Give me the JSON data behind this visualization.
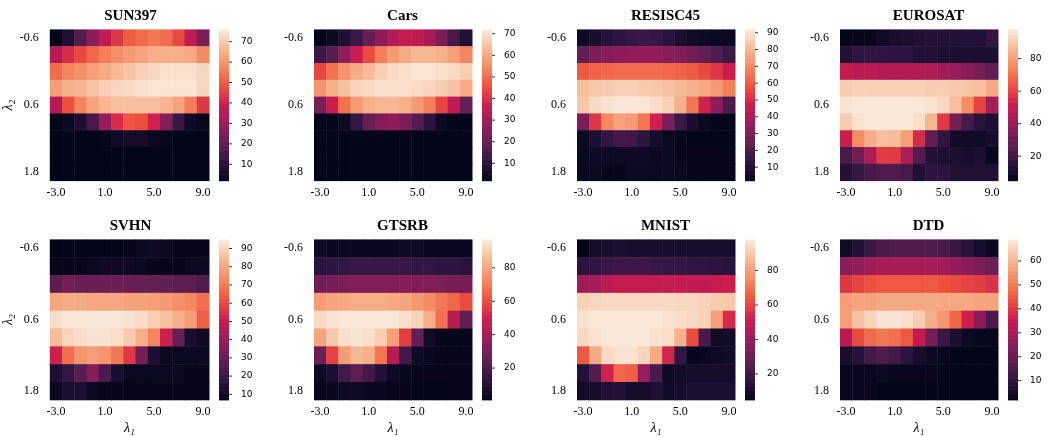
{
  "chart_data": [
    {
      "type": "heatmap",
      "title": "SUN397",
      "ylabel": "λ₂",
      "categories": [
        "-3.0",
        null,
        null,
        null,
        "1.0",
        null,
        null,
        null,
        "5.0",
        null,
        null,
        null,
        "9.0"
      ],
      "y_categories": [
        "-0.6",
        null,
        null,
        null,
        "0.6",
        null,
        null,
        null,
        "1.8"
      ],
      "clim": [
        2,
        76
      ],
      "cticks": [
        10,
        20,
        30,
        40,
        50,
        60,
        70
      ],
      "cells": [
        [
          2,
          8,
          18,
          28,
          37,
          44,
          50,
          53,
          55,
          53,
          47,
          37,
          25
        ],
        [
          35,
          42,
          47,
          52,
          56,
          59,
          61,
          63,
          65,
          65,
          65,
          64,
          58
        ],
        [
          53,
          57,
          59,
          62,
          64,
          67,
          69,
          71,
          72,
          74,
          74,
          74,
          72
        ],
        [
          62,
          65,
          66,
          69,
          71,
          72,
          73,
          74,
          75,
          75,
          75,
          75,
          72
        ],
        [
          35,
          48,
          57,
          63,
          66,
          68,
          68,
          68,
          68,
          66,
          63,
          56,
          44
        ],
        [
          2,
          4,
          8,
          16,
          30,
          42,
          49,
          48,
          40,
          27,
          13,
          5,
          3
        ],
        [
          2,
          2,
          2,
          2,
          3,
          5,
          6,
          6,
          4,
          3,
          2,
          2,
          2
        ],
        [
          2,
          2,
          2,
          2,
          2,
          2,
          2,
          2,
          2,
          2,
          2,
          2,
          2
        ],
        [
          2,
          2,
          2,
          2,
          2,
          2,
          2,
          2,
          2,
          2,
          2,
          2,
          2
        ]
      ]
    },
    {
      "type": "heatmap",
      "title": "Cars",
      "categories": [
        "-3.0",
        null,
        null,
        null,
        "1.0",
        null,
        null,
        null,
        "5.0",
        null,
        null,
        null,
        "9.0"
      ],
      "y_categories": [
        "-0.6",
        null,
        null,
        null,
        "0.6",
        null,
        null,
        null,
        "1.8"
      ],
      "clim": [
        2,
        72
      ],
      "cticks": [
        10,
        20,
        30,
        40,
        50,
        60,
        70
      ],
      "cells": [
        [
          2,
          4,
          8,
          13,
          20,
          27,
          33,
          36,
          35,
          31,
          24,
          15,
          8
        ],
        [
          13,
          18,
          27,
          37,
          45,
          53,
          58,
          61,
          63,
          63,
          62,
          59,
          54
        ],
        [
          44,
          51,
          57,
          61,
          64,
          67,
          69,
          70,
          71,
          71,
          70,
          69,
          67
        ],
        [
          57,
          62,
          65,
          68,
          69,
          70,
          70,
          70,
          69,
          68,
          67,
          65,
          61
        ],
        [
          23,
          37,
          51,
          58,
          62,
          63,
          63,
          62,
          58,
          53,
          44,
          35,
          20
        ],
        [
          2,
          2,
          4,
          12,
          20,
          25,
          27,
          24,
          17,
          10,
          4,
          2,
          2
        ],
        [
          2,
          2,
          2,
          2,
          2,
          2,
          2,
          2,
          2,
          2,
          2,
          2,
          2
        ],
        [
          2,
          2,
          2,
          2,
          2,
          2,
          2,
          2,
          2,
          2,
          2,
          2,
          2
        ],
        [
          2,
          2,
          2,
          2,
          2,
          2,
          2,
          2,
          2,
          2,
          2,
          2,
          2
        ]
      ]
    },
    {
      "type": "heatmap",
      "title": "RESISC45",
      "categories": [
        "-3.0",
        null,
        null,
        null,
        "1.0",
        null,
        null,
        null,
        "5.0",
        null,
        null,
        null,
        "9.0"
      ],
      "y_categories": [
        "-0.6",
        null,
        null,
        null,
        "0.6",
        null,
        null,
        null,
        "1.8"
      ],
      "clim": [
        2,
        92
      ],
      "cticks": [
        10,
        20,
        30,
        40,
        50,
        60,
        70,
        80,
        90
      ],
      "cells": [
        [
          5,
          8,
          11,
          13,
          15,
          16,
          15,
          12,
          9,
          6,
          5,
          4,
          4
        ],
        [
          25,
          30,
          32,
          34,
          35,
          35,
          35,
          33,
          31,
          28,
          25,
          21,
          16
        ],
        [
          60,
          62,
          63,
          64,
          64,
          64,
          64,
          63,
          62,
          60,
          57,
          53,
          47
        ],
        [
          82,
          84,
          85,
          86,
          86,
          85,
          84,
          83,
          81,
          79,
          77,
          74,
          68
        ],
        [
          84,
          88,
          90,
          91,
          91,
          91,
          89,
          86,
          79,
          66,
          48,
          33,
          20
        ],
        [
          30,
          53,
          70,
          76,
          74,
          66,
          48,
          30,
          16,
          8,
          4,
          3,
          3
        ],
        [
          5,
          9,
          14,
          18,
          17,
          13,
          7,
          4,
          3,
          2,
          2,
          2,
          2
        ],
        [
          4,
          5,
          5,
          5,
          5,
          5,
          4,
          4,
          3,
          3,
          3,
          3,
          3
        ],
        [
          4,
          4,
          3,
          3,
          4,
          4,
          4,
          4,
          4,
          3,
          3,
          3,
          3
        ]
      ]
    },
    {
      "type": "heatmap",
      "title": "EUROSAT",
      "categories": [
        "-3.0",
        null,
        null,
        null,
        "1.0",
        null,
        null,
        null,
        "5.0",
        null,
        null,
        null,
        "9.0"
      ],
      "y_categories": [
        "-0.6",
        null,
        null,
        null,
        "0.6",
        null,
        null,
        null,
        "1.8"
      ],
      "clim": [
        5,
        98
      ],
      "cticks": [
        20,
        40,
        60,
        80
      ],
      "cells": [
        [
          5,
          6,
          6,
          9,
          11,
          12,
          13,
          14,
          14,
          14,
          14,
          14,
          18
        ],
        [
          13,
          17,
          17,
          17,
          16,
          16,
          14,
          13,
          12,
          12,
          12,
          12,
          12
        ],
        [
          50,
          48,
          48,
          46,
          46,
          46,
          46,
          45,
          42,
          40,
          37,
          33,
          28
        ],
        [
          91,
          92,
          92,
          92,
          92,
          92,
          92,
          91,
          91,
          90,
          89,
          88,
          83
        ],
        [
          96,
          97,
          97,
          97,
          97,
          97,
          97,
          96,
          94,
          88,
          76,
          60,
          43
        ],
        [
          91,
          96,
          97,
          97,
          97,
          97,
          95,
          86,
          58,
          33,
          22,
          15,
          12
        ],
        [
          52,
          76,
          84,
          88,
          87,
          80,
          55,
          28,
          17,
          9,
          9,
          9,
          11
        ],
        [
          22,
          32,
          45,
          59,
          58,
          45,
          25,
          14,
          12,
          12,
          11,
          12,
          6
        ],
        [
          14,
          18,
          22,
          24,
          24,
          22,
          13,
          16,
          16,
          13,
          13,
          13,
          13
        ]
      ]
    },
    {
      "type": "heatmap",
      "title": "SVHN",
      "xlabel": "λ₁",
      "ylabel": "λ₂",
      "categories": [
        "-3.0",
        null,
        null,
        null,
        "1.0",
        null,
        null,
        null,
        "5.0",
        null,
        null,
        null,
        "9.0"
      ],
      "y_categories": [
        "-0.6",
        null,
        null,
        null,
        "0.6",
        null,
        null,
        null,
        "1.8"
      ],
      "clim": [
        7,
        95
      ],
      "cticks": [
        10,
        20,
        30,
        40,
        50,
        60,
        70,
        80,
        90
      ],
      "cells": [
        [
          7,
          7,
          7,
          7,
          7,
          7,
          8,
          9,
          10,
          9,
          8,
          8,
          8
        ],
        [
          8,
          8,
          8,
          9,
          10,
          10,
          10,
          9,
          8,
          8,
          8,
          9,
          9
        ],
        [
          28,
          33,
          31,
          31,
          31,
          31,
          31,
          30,
          30,
          29,
          28,
          28,
          25
        ],
        [
          80,
          81,
          81,
          80,
          80,
          80,
          79,
          79,
          78,
          77,
          75,
          73,
          68
        ],
        [
          92,
          94,
          94,
          94,
          94,
          94,
          93,
          92,
          89,
          86,
          82,
          78,
          65
        ],
        [
          85,
          90,
          92,
          93,
          93,
          92,
          88,
          82,
          73,
          52,
          30,
          13,
          10
        ],
        [
          52,
          68,
          76,
          78,
          76,
          70,
          57,
          33,
          14,
          9,
          9,
          9,
          9
        ],
        [
          14,
          19,
          27,
          36,
          24,
          13,
          9,
          9,
          9,
          9,
          9,
          8,
          8
        ],
        [
          9,
          14,
          14,
          9,
          8,
          8,
          8,
          8,
          8,
          8,
          8,
          8,
          8
        ]
      ]
    },
    {
      "type": "heatmap",
      "title": "GTSRB",
      "xlabel": "λ₁",
      "categories": [
        "-3.0",
        null,
        null,
        null,
        "1.0",
        null,
        null,
        null,
        "5.0",
        null,
        null,
        null,
        "9.0"
      ],
      "y_categories": [
        "-0.6",
        null,
        null,
        null,
        "0.6",
        null,
        null,
        null,
        "1.8"
      ],
      "clim": [
        1,
        97
      ],
      "cticks": [
        20,
        40,
        60,
        80
      ],
      "cells": [
        [
          4,
          3,
          3,
          3,
          3,
          3,
          3,
          4,
          4,
          3,
          3,
          3,
          3
        ],
        [
          12,
          13,
          14,
          15,
          15,
          15,
          15,
          15,
          14,
          14,
          13,
          13,
          12
        ],
        [
          28,
          30,
          31,
          32,
          32,
          32,
          32,
          33,
          32,
          32,
          31,
          30,
          30
        ],
        [
          78,
          80,
          81,
          82,
          82,
          82,
          81,
          80,
          77,
          74,
          70,
          66,
          60
        ],
        [
          93,
          95,
          96,
          96,
          96,
          96,
          96,
          94,
          91,
          82,
          68,
          45,
          25
        ],
        [
          80,
          89,
          94,
          95,
          94,
          90,
          79,
          57,
          25,
          5,
          2,
          2,
          2
        ],
        [
          27,
          58,
          78,
          85,
          83,
          69,
          44,
          18,
          5,
          3,
          2,
          2,
          2
        ],
        [
          4,
          8,
          18,
          24,
          18,
          10,
          4,
          3,
          2,
          2,
          2,
          2,
          2
        ],
        [
          2,
          3,
          4,
          4,
          3,
          3,
          2,
          2,
          1,
          1,
          1,
          2,
          2
        ]
      ]
    },
    {
      "type": "heatmap",
      "title": "MNIST",
      "xlabel": "λ₁",
      "categories": [
        "-3.0",
        null,
        null,
        null,
        "1.0",
        null,
        null,
        null,
        "5.0",
        null,
        null,
        null,
        "9.0"
      ],
      "y_categories": [
        "-0.6",
        null,
        null,
        null,
        "0.6",
        null,
        null,
        null,
        "1.8"
      ],
      "clim": [
        5,
        98
      ],
      "cticks": [
        20,
        40,
        60,
        80
      ],
      "cells": [
        [
          5,
          10,
          11,
          12,
          11,
          11,
          11,
          11,
          11,
          11,
          11,
          11,
          11
        ],
        [
          16,
          17,
          19,
          20,
          20,
          20,
          19,
          18,
          18,
          17,
          17,
          16,
          15
        ],
        [
          42,
          43,
          48,
          50,
          50,
          50,
          50,
          50,
          50,
          49,
          49,
          51,
          52
        ],
        [
          92,
          93,
          94,
          94,
          94,
          94,
          94,
          94,
          93,
          93,
          92,
          91,
          90
        ],
        [
          96,
          97,
          97,
          97,
          97,
          97,
          97,
          96,
          95,
          94,
          92,
          80,
          55
        ],
        [
          94,
          96,
          97,
          97,
          97,
          97,
          96,
          95,
          85,
          62,
          22,
          9,
          9
        ],
        [
          65,
          83,
          94,
          96,
          96,
          93,
          83,
          54,
          18,
          6,
          7,
          8,
          9
        ],
        [
          14,
          25,
          53,
          68,
          66,
          40,
          23,
          8,
          9,
          10,
          10,
          10,
          10
        ],
        [
          9,
          10,
          13,
          14,
          10,
          10,
          13,
          9,
          11,
          12,
          12,
          12,
          12
        ]
      ]
    },
    {
      "type": "heatmap",
      "title": "DTD",
      "xlabel": "λ₁",
      "categories": [
        "-3.0",
        null,
        null,
        null,
        "1.0",
        null,
        null,
        null,
        "5.0",
        null,
        null,
        null,
        "9.0"
      ],
      "y_categories": [
        "-0.6",
        null,
        null,
        null,
        "0.6",
        null,
        null,
        null,
        "1.8"
      ],
      "clim": [
        2,
        69
      ],
      "cticks": [
        10,
        20,
        30,
        40,
        50,
        60
      ],
      "cells": [
        [
          5,
          8,
          12,
          15,
          16,
          16,
          16,
          16,
          15,
          12,
          9,
          6,
          4
        ],
        [
          25,
          27,
          29,
          30,
          30,
          30,
          30,
          30,
          29,
          27,
          25,
          23,
          20
        ],
        [
          40,
          42,
          44,
          45,
          45,
          45,
          45,
          45,
          44,
          43,
          42,
          41,
          39
        ],
        [
          56,
          57,
          57,
          58,
          58,
          58,
          58,
          58,
          58,
          58,
          58,
          57,
          57
        ],
        [
          56,
          62,
          65,
          68,
          68,
          67,
          64,
          59,
          55,
          47,
          36,
          26,
          15
        ],
        [
          33,
          43,
          48,
          50,
          49,
          45,
          34,
          22,
          12,
          7,
          4,
          3,
          3
        ],
        [
          6,
          9,
          14,
          16,
          14,
          10,
          6,
          4,
          3,
          2,
          2,
          2,
          2
        ],
        [
          3,
          3,
          3,
          4,
          3,
          3,
          3,
          3,
          2,
          2,
          2,
          2,
          2
        ],
        [
          3,
          3,
          3,
          2,
          2,
          2,
          2,
          2,
          2,
          2,
          2,
          2,
          2
        ]
      ]
    }
  ]
}
